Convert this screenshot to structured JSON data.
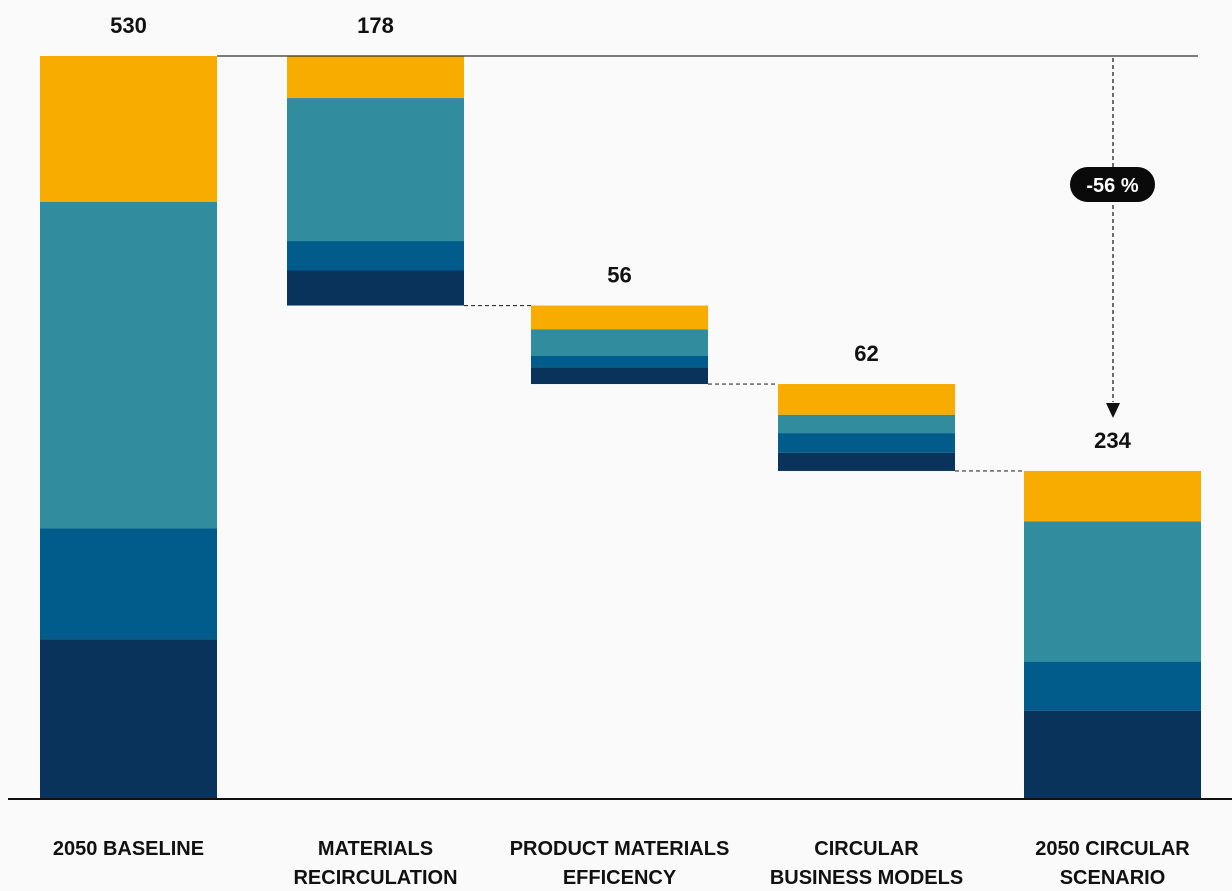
{
  "chart_data": {
    "type": "bar",
    "subtype": "waterfall-stacked",
    "title": "",
    "xlabel": "",
    "ylabel": "",
    "categories": [
      "2050 BASELINE",
      "MATERIALS RECIRCULATION",
      "PRODUCT MATERIALS EFFICENCY",
      "CIRCULAR BUSINESS MODELS",
      "2050 CIRCULAR SCENARIO"
    ],
    "category_lines": [
      [
        "2050 BASELINE"
      ],
      [
        "MATERIALS",
        "RECIRCULATION"
      ],
      [
        "PRODUCT MATERIALS",
        "EFFICENCY"
      ],
      [
        "CIRCULAR",
        "BUSINESS MODELS"
      ],
      [
        "2050 CIRCULAR",
        "SCENARIO"
      ]
    ],
    "totals": [
      530,
      178,
      56,
      62,
      234
    ],
    "total_labels": [
      "530",
      "178",
      "56",
      "62",
      "234"
    ],
    "bar_kinds": [
      "total",
      "decrease",
      "decrease",
      "decrease",
      "total"
    ],
    "series": [
      {
        "color": "#f8ac00",
        "values": [
          104,
          30,
          17,
          22,
          36
        ]
      },
      {
        "color": "#318d9e",
        "values": [
          233,
          102,
          19,
          13,
          100
        ]
      },
      {
        "color": "#025c8b",
        "values": [
          79,
          21,
          8,
          14,
          35
        ]
      },
      {
        "color": "#09335b",
        "values": [
          114,
          25,
          12,
          13,
          63
        ]
      }
    ],
    "ylim": [
      0,
      530
    ],
    "grid": false,
    "legend": "none",
    "annotation": {
      "label": "-56 %",
      "from": 530,
      "to": 234
    }
  }
}
